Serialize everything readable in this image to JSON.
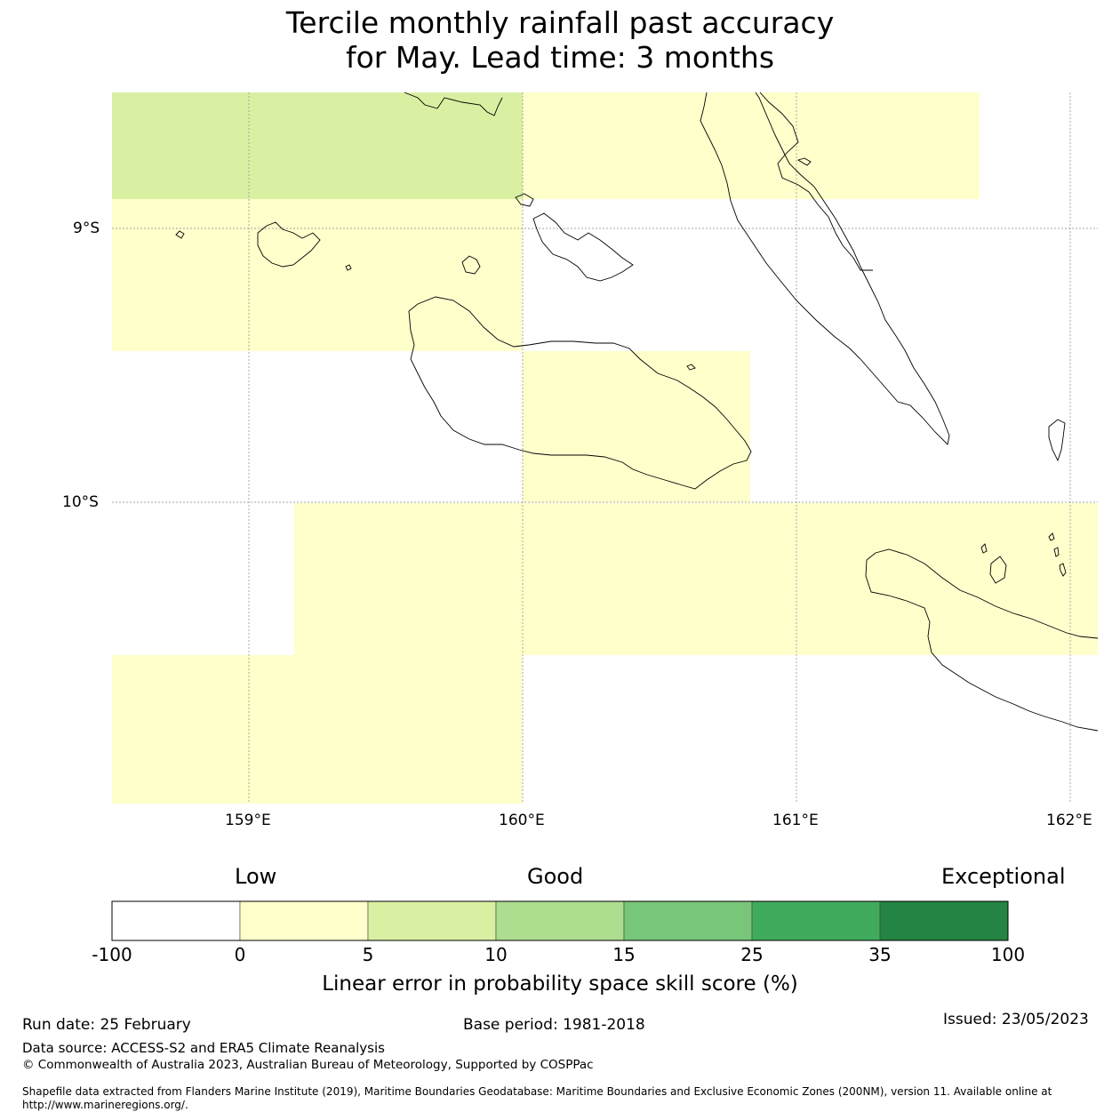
{
  "title": {
    "line1": "Tercile monthly rainfall past accuracy",
    "line2": "for May. Lead time: 3 months"
  },
  "map": {
    "lat_labels": [
      "9°S",
      "10°S"
    ],
    "lon_labels": [
      "159°E",
      "160°E",
      "161°E",
      "162°E"
    ],
    "colors": {
      "low": "#ffffcc",
      "good_low": "#d9f0a3",
      "coast": "#000000"
    }
  },
  "colorbar": {
    "category_labels": [
      "Low",
      "Good",
      "Exceptional"
    ],
    "ticks": [
      "-100",
      "0",
      "5",
      "10",
      "15",
      "25",
      "35",
      "100"
    ],
    "colors": [
      "#ffffff",
      "#ffffcc",
      "#d9f0a3",
      "#addd8e",
      "#78c679",
      "#41ab5d",
      "#238443"
    ],
    "title": "Linear error in probability space skill score (%)"
  },
  "footer": {
    "run_date": "Run date: 25 February",
    "base_period": "Base period: 1981-2018",
    "issued": "Issued: 23/05/2023",
    "data_source": "Data source: ACCESS-S2 and ERA5 Climate Reanalysis",
    "copyright": "© Commonwealth of Australia 2023, Australian Bureau of Meteorology, Supported by COSPPac",
    "shapefile_line1": "Shapefile data extracted from Flanders Marine Institute (2019), Maritime Boundaries Geodatabase: Maritime Boundaries and Exclusive Economic Zones (200NM), version 11. Available online at",
    "shapefile_line2": "http://www.marineregions.org/."
  }
}
